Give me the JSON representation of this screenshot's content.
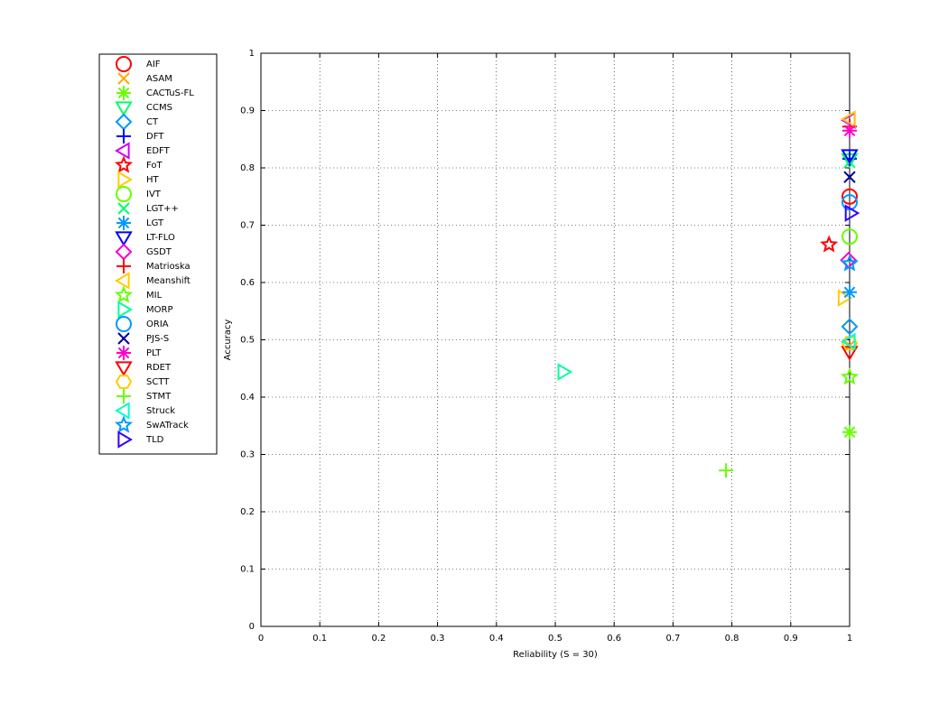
{
  "chart_data": {
    "type": "scatter",
    "xlabel": "Reliability (S = 30)",
    "ylabel": "Accuracy",
    "xlim": [
      0,
      1
    ],
    "ylim": [
      0,
      1
    ],
    "xticks": [
      0,
      0.1,
      0.2,
      0.3,
      0.4,
      0.5,
      0.6,
      0.7,
      0.8,
      0.9,
      1
    ],
    "yticks": [
      0,
      0.1,
      0.2,
      0.3,
      0.4,
      0.5,
      0.6,
      0.7,
      0.8,
      0.9,
      1
    ],
    "grid": true,
    "legend": "outside-left",
    "series": [
      {
        "name": "AIF",
        "color": "#ff0000",
        "marker": "circle",
        "x": [
          1
        ],
        "values": [
          0.75
        ]
      },
      {
        "name": "ASAM",
        "color": "#ffaa00",
        "marker": "x",
        "x": [
          1
        ],
        "values": [
          0.49
        ]
      },
      {
        "name": "CACTuS-FL",
        "color": "#66ff00",
        "marker": "asterisk",
        "x": [
          1
        ],
        "values": [
          0.339
        ]
      },
      {
        "name": "CCMS",
        "color": "#00ff66",
        "marker": "triangle-down",
        "x": [
          1
        ],
        "values": [
          0.815
        ]
      },
      {
        "name": "CT",
        "color": "#0099ff",
        "marker": "diamond",
        "x": [
          1
        ],
        "values": [
          0.523
        ]
      },
      {
        "name": "DFT",
        "color": "#0000ff",
        "marker": "plus",
        "x": [
          1
        ],
        "values": [
          0.816
        ]
      },
      {
        "name": "EDFT",
        "color": "#cc00ff",
        "marker": "triangle-left",
        "x": [
          1
        ],
        "values": [
          0.883
        ]
      },
      {
        "name": "FoT",
        "color": "#ff0000",
        "marker": "star",
        "x": [
          0.965
        ],
        "values": [
          0.666
        ]
      },
      {
        "name": "HT",
        "color": "#ffcc00",
        "marker": "triangle-right",
        "x": [
          0.99
        ],
        "values": [
          0.573
        ]
      },
      {
        "name": "IVT",
        "color": "#66ff00",
        "marker": "circle",
        "x": [
          1
        ],
        "values": [
          0.68
        ]
      },
      {
        "name": "LGT++",
        "color": "#00ff66",
        "marker": "x",
        "x": [
          1
        ],
        "values": [
          0.81
        ]
      },
      {
        "name": "LGT",
        "color": "#0099ff",
        "marker": "asterisk",
        "x": [
          1
        ],
        "values": [
          0.583
        ]
      },
      {
        "name": "LT-FLO",
        "color": "#0000ff",
        "marker": "triangle-down",
        "x": [
          1
        ],
        "values": [
          0.822
        ]
      },
      {
        "name": "GSDT",
        "color": "#ff00cc",
        "marker": "diamond",
        "x": [
          0.998
        ],
        "values": [
          0.639
        ]
      },
      {
        "name": "Matrioska",
        "color": "#ff0000",
        "marker": "plus",
        "x": [
          1
        ],
        "values": [
          0.872
        ]
      },
      {
        "name": "Meanshift",
        "color": "#ffcc00",
        "marker": "triangle-left",
        "x": [
          1
        ],
        "values": [
          0.885
        ]
      },
      {
        "name": "MIL",
        "color": "#66ff00",
        "marker": "star",
        "x": [
          1
        ],
        "values": [
          0.435
        ]
      },
      {
        "name": "MORP",
        "color": "#00ff99",
        "marker": "triangle-right",
        "x": [
          0.514
        ],
        "values": [
          0.444
        ]
      },
      {
        "name": "ORIA",
        "color": "#0099ff",
        "marker": "circle",
        "x": [
          1
        ],
        "values": [
          0.74
        ]
      },
      {
        "name": "PJS-S",
        "color": "#000099",
        "marker": "x",
        "x": [
          1
        ],
        "values": [
          0.784
        ]
      },
      {
        "name": "PLT",
        "color": "#ff00cc",
        "marker": "asterisk",
        "x": [
          1
        ],
        "values": [
          0.865
        ]
      },
      {
        "name": "RDET",
        "color": "#ff0000",
        "marker": "triangle-down",
        "x": [
          1
        ],
        "values": [
          0.479
        ]
      },
      {
        "name": "SCTT",
        "color": "#ffcc00",
        "marker": "hexagon",
        "x": [
          1
        ],
        "values": [
          0.494
        ]
      },
      {
        "name": "STMT",
        "color": "#66ff00",
        "marker": "plus",
        "x": [
          0.79
        ],
        "values": [
          0.272
        ]
      },
      {
        "name": "Struck",
        "color": "#00ffcc",
        "marker": "triangle-left",
        "x": [
          1
        ],
        "values": [
          0.497
        ]
      },
      {
        "name": "SwATrack",
        "color": "#0099ff",
        "marker": "star",
        "x": [
          1
        ],
        "values": [
          0.633
        ]
      },
      {
        "name": "TLD",
        "color": "#3300ff",
        "marker": "triangle-right",
        "x": [
          1.002
        ],
        "values": [
          0.721
        ]
      }
    ]
  }
}
